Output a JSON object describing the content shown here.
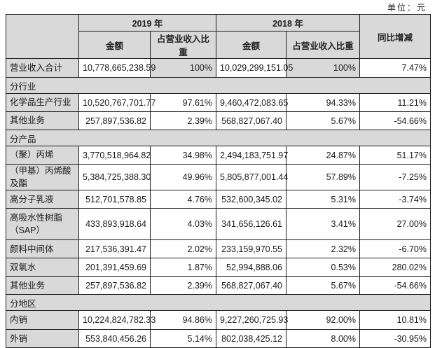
{
  "unit_label": "单位：元",
  "colors": {
    "shaded_cell": "#d9d9d9",
    "border": "#1c1c1c",
    "background": "#ffffff"
  },
  "table": {
    "headers": {
      "y2019": "2019 年",
      "y2018": "2018 年",
      "yoy": "同比增减",
      "amount": "金额",
      "pct": "占营业收入比重"
    },
    "rows": [
      {
        "type": "data",
        "first": true,
        "label": "营业收入合计",
        "a2019": "10,778,665,238.59",
        "p2019": "100%",
        "a2018": "10,029,299,151.05",
        "p2018": "100%",
        "yoy": "7.47%",
        "pct_shaded": true
      },
      {
        "type": "section",
        "label": "分行业"
      },
      {
        "type": "data",
        "label": "化学品生产行业",
        "a2019": "10,520,767,701.77",
        "p2019": "97.61%",
        "a2018": "9,460,472,083.65",
        "p2018": "94.33%",
        "yoy": "11.21%"
      },
      {
        "type": "data",
        "label": "其他业务",
        "a2019": "257,897,536.82",
        "p2019": "2.39%",
        "a2018": "568,827,067.40",
        "p2018": "5.67%",
        "yoy": "-54.66%"
      },
      {
        "type": "section",
        "label": "分产品"
      },
      {
        "type": "data",
        "label": "（聚）丙烯",
        "a2019": "3,770,518,964.82",
        "p2019": "34.98%",
        "a2018": "2,494,183,751.97",
        "p2018": "24.87%",
        "yoy": "51.17%"
      },
      {
        "type": "data",
        "label": "（甲基）丙烯酸及酯",
        "a2019": "5,384,725,388.30",
        "p2019": "49.96%",
        "a2018": "5,805,877,001.44",
        "p2018": "57.89%",
        "yoy": "-7.25%"
      },
      {
        "type": "data",
        "label": "高分子乳液",
        "a2019": "512,701,578.85",
        "p2019": "4.76%",
        "a2018": "532,600,345.02",
        "p2018": "5.31%",
        "yoy": "-3.74%"
      },
      {
        "type": "data",
        "tall": true,
        "label": "高吸水性树脂\n（SAP）",
        "a2019": "433,893,918.64",
        "p2019": "4.03%",
        "a2018": "341,656,126.61",
        "p2018": "3.41%",
        "yoy": "27.00%"
      },
      {
        "type": "data",
        "label": "颜料中间体",
        "a2019": "217,536,391.47",
        "p2019": "2.02%",
        "a2018": "233,159,970.55",
        "p2018": "2.32%",
        "yoy": "-6.70%"
      },
      {
        "type": "data",
        "label": "双氧水",
        "a2019": "201,391,459.69",
        "p2019": "1.87%",
        "a2018": "52,994,888.06",
        "p2018": "0.53%",
        "yoy": "280.02%"
      },
      {
        "type": "data",
        "label": "其他业务",
        "a2019": "257,897,536.82",
        "p2019": "2.39%",
        "a2018": "568,827,067.40",
        "p2018": "5.67%",
        "yoy": "-54.66%"
      },
      {
        "type": "section",
        "label": "分地区"
      },
      {
        "type": "data",
        "first": true,
        "label": "内销",
        "a2019": "10,224,824,782.33",
        "p2019": "94.86%",
        "a2018": "9,227,260,725.93",
        "p2018": "92.00%",
        "yoy": "10.81%"
      },
      {
        "type": "data",
        "label": "外销",
        "a2019": "553,840,456.26",
        "p2019": "5.14%",
        "a2018": "802,038,425.12",
        "p2018": "8.00%",
        "yoy": "-30.95%"
      }
    ]
  }
}
